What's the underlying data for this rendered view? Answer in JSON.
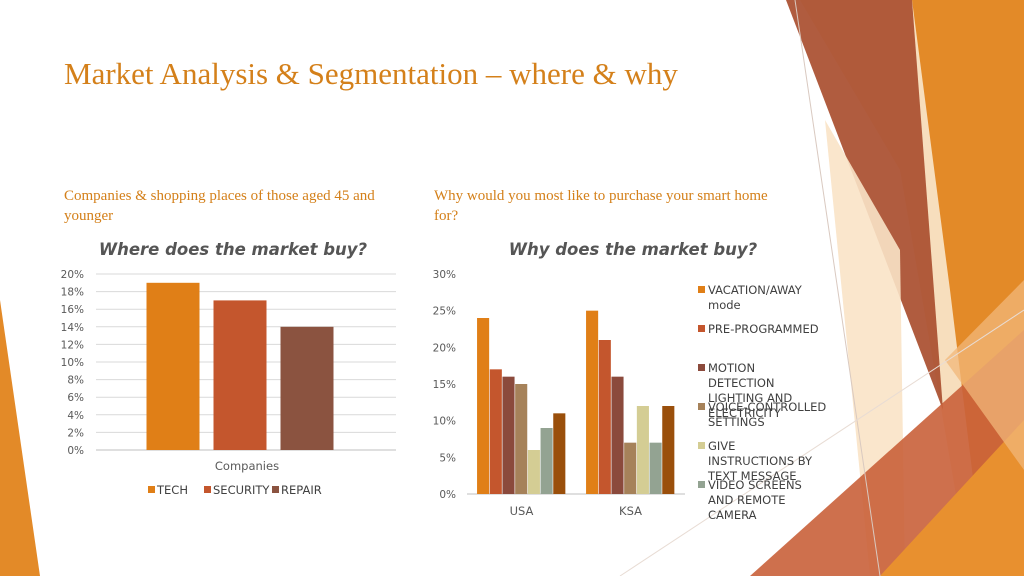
{
  "slide": {
    "title": "Market Analysis & Segmentation – where & why",
    "left_caption": "Companies & shopping places of those aged 45 and younger",
    "right_caption": "Why would you most like to purchase your smart home for?"
  },
  "chart_data": [
    {
      "type": "bar",
      "title": "Where does the market buy?",
      "xlabel": "Companies",
      "ylabel": "",
      "ylim": [
        0,
        20
      ],
      "y_ticks": [
        "0%",
        "2%",
        "4%",
        "6%",
        "8%",
        "10%",
        "12%",
        "14%",
        "16%",
        "18%",
        "20%"
      ],
      "y_unit": "%",
      "categories": [
        "Companies"
      ],
      "series": [
        {
          "name": "TECH",
          "color": "#e07f17",
          "values": [
            19
          ]
        },
        {
          "name": "SECURITY",
          "color": "#c4562d",
          "values": [
            17
          ]
        },
        {
          "name": "REPAIR",
          "color": "#8b5340",
          "values": [
            14
          ]
        }
      ],
      "legend_position": "bottom",
      "grid": true
    },
    {
      "type": "bar",
      "title": "Why does the market buy?",
      "xlabel": "",
      "ylabel": "",
      "ylim": [
        0,
        30
      ],
      "y_ticks": [
        "0%",
        "5%",
        "10%",
        "15%",
        "20%",
        "25%",
        "30%"
      ],
      "y_unit": "%",
      "categories": [
        "USA",
        "KSA"
      ],
      "series": [
        {
          "name": "VACATION/AWAY mode",
          "color": "#e07f17",
          "values": [
            24,
            25
          ]
        },
        {
          "name": "PRE-PROGRAMMED",
          "color": "#c4562d",
          "values": [
            17,
            21
          ]
        },
        {
          "name": "MOTION DETECTION LIGHTING AND ELECTRICITY",
          "color": "#8b4a3c",
          "values": [
            16,
            16
          ]
        },
        {
          "name": "VOICE-CONTROLLED SETTINGS",
          "color": "#a6825a",
          "values": [
            15,
            7
          ]
        },
        {
          "name": "GIVE INSTRUCTIONS BY TEXT MESSAGE",
          "color": "#d4cd94",
          "values": [
            6,
            12
          ]
        },
        {
          "name": "VIDEO SCREENS AND REMOTE CAMERA",
          "color": "#93a392",
          "values": [
            9,
            7
          ]
        },
        {
          "name": "",
          "color": "#9a4f0b",
          "values": [
            11,
            12
          ]
        }
      ],
      "legend_position": "right",
      "grid": false
    }
  ],
  "theme": {
    "accent": "#d4801a",
    "decor_colors": [
      "#a44a2a",
      "#e38a28",
      "#f1b779",
      "#b2593a",
      "#f6d8b2",
      "#d0652a"
    ]
  }
}
